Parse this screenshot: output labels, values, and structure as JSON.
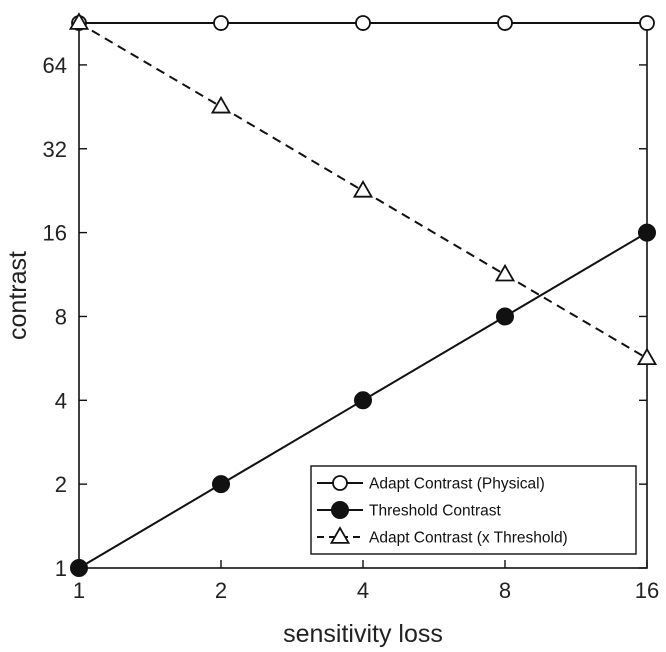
{
  "chart_data": {
    "type": "line",
    "x_scale": "log2",
    "y_scale": "log2",
    "x": [
      1,
      2,
      4,
      8,
      16
    ],
    "xlim": [
      1,
      16
    ],
    "ylim": [
      1,
      90.5
    ],
    "xlabel": "sensitivity loss",
    "ylabel": "contrast",
    "x_ticks": [
      1,
      2,
      4,
      8,
      16
    ],
    "x_tick_labels": [
      "1",
      "2",
      "4",
      "8",
      "16"
    ],
    "y_ticks": [
      1,
      2,
      4,
      8,
      16,
      32,
      64
    ],
    "y_tick_labels": [
      "1",
      "2",
      "4",
      "8",
      "16",
      "32",
      "64"
    ],
    "grid": false,
    "legend_position": "bottom-right",
    "series": [
      {
        "name": "Adapt Contrast (Physical)",
        "values": [
          90.5,
          90.5,
          90.5,
          90.5,
          90.5
        ],
        "marker": "open-circle",
        "line_style": "solid"
      },
      {
        "name": "Threshold Contrast",
        "values": [
          1,
          2,
          4,
          8,
          16
        ],
        "marker": "filled-circle",
        "line_style": "solid"
      },
      {
        "name": "Adapt Contrast (x Threshold)",
        "values": [
          90.5,
          45.3,
          22.6,
          11.3,
          5.66
        ],
        "marker": "open-triangle",
        "line_style": "dashed"
      }
    ],
    "colors": {
      "line": "#111111",
      "axis": "#111111",
      "text": "#222222"
    }
  }
}
